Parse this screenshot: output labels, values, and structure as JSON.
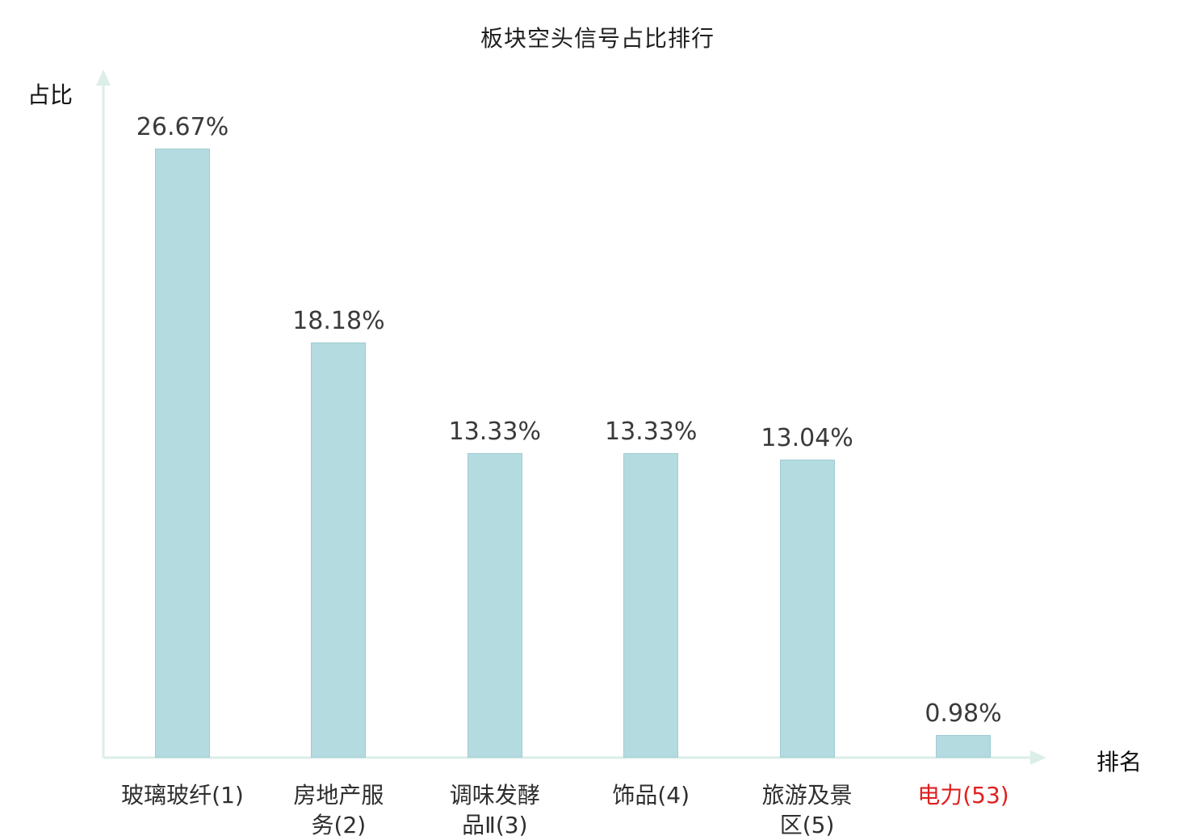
{
  "chart_data": {
    "type": "bar",
    "title": "板块空头信号占比排行",
    "xlabel": "排名",
    "ylabel": "占比",
    "categories": [
      "玻璃玻纤(1)",
      "房地产服务(2)",
      "调味发酵品Ⅱ(3)",
      "饰品(4)",
      "旅游及景区(5)",
      "电力(53)"
    ],
    "values": [
      26.67,
      18.18,
      13.33,
      13.33,
      13.04,
      0.98
    ],
    "value_labels": [
      "26.67%",
      "18.18%",
      "13.33%",
      "13.33%",
      "13.04%",
      "0.98%"
    ],
    "category_label_lines": [
      [
        "玻璃玻纤(1)"
      ],
      [
        "房地产服",
        "务(2)"
      ],
      [
        "调味发酵",
        "品Ⅱ(3)"
      ],
      [
        "饰品(4)"
      ],
      [
        "旅游及景",
        "区(5)"
      ],
      [
        "电力(53)"
      ]
    ],
    "ylim": [
      0,
      30
    ],
    "grid": false,
    "legend": null,
    "bar_color": "#b4dbe0",
    "bar_border_color": "#9fccd3",
    "axis_color": "#dceee8",
    "value_label_color": "#3a3a3a",
    "category_label_color": "#2f2f2f",
    "highlight_index": 5,
    "highlight_color": "#e01f1f"
  }
}
